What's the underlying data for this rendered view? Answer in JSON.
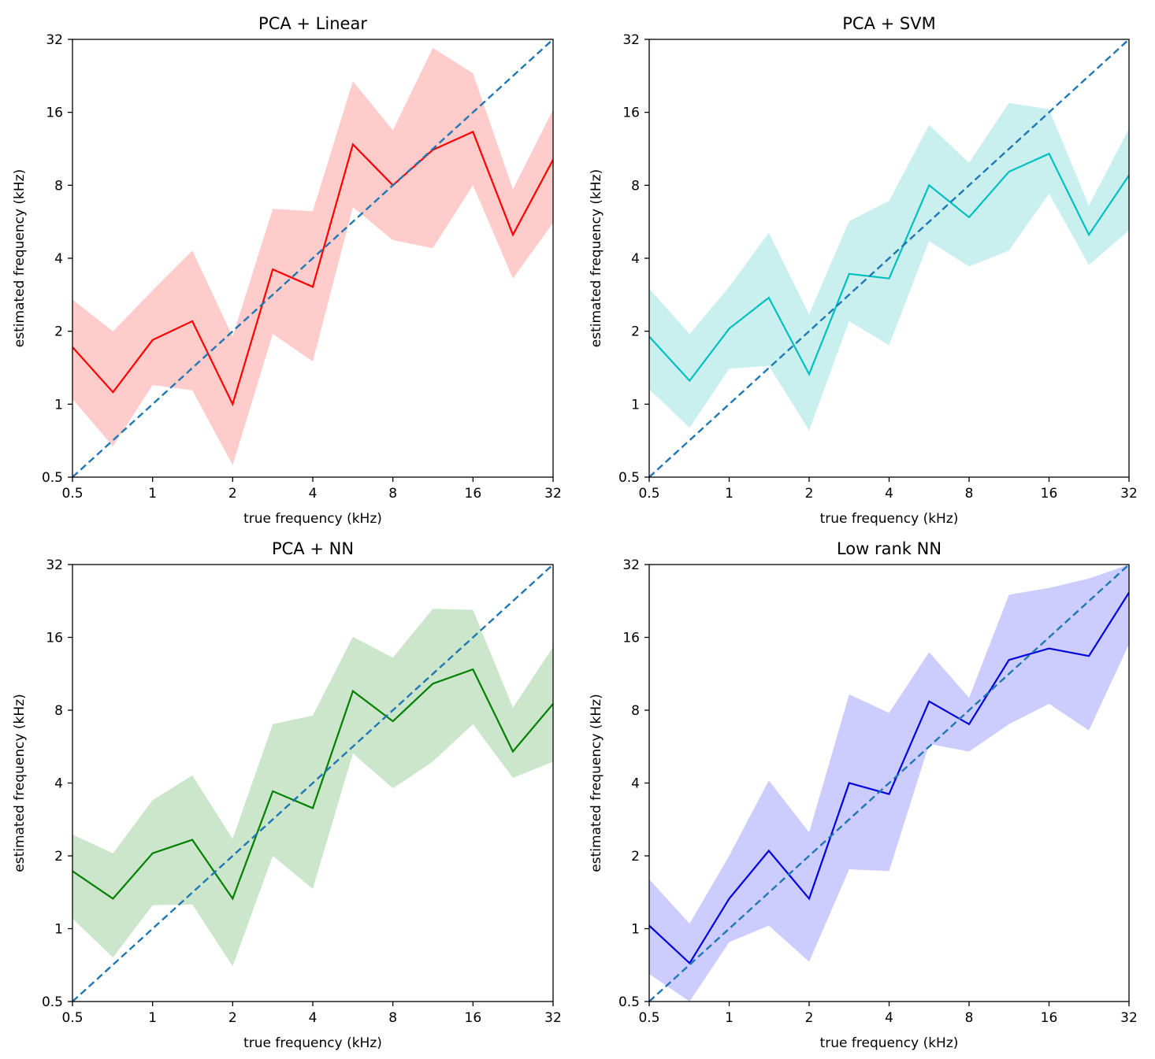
{
  "chart_data": [
    {
      "type": "line",
      "title": "PCA + Linear",
      "xlabel": "true frequency (kHz)",
      "ylabel": "estimated frequency (kHz)",
      "xscale": "log2",
      "yscale": "log2",
      "xlim": [
        0.5,
        32
      ],
      "ylim": [
        0.5,
        32
      ],
      "xticks": [
        "0.5",
        "1",
        "2",
        "4",
        "8",
        "16",
        "32"
      ],
      "yticks": [
        "0.5",
        "1",
        "2",
        "4",
        "8",
        "16",
        "32"
      ],
      "grid": false,
      "line_color": "#ff0000",
      "band_color": "#ffcccc",
      "reference_line": {
        "style": "dashed",
        "color": "#1f77b4",
        "from": [
          0.5,
          0.5
        ],
        "to": [
          32,
          32
        ]
      },
      "x": [
        0.5,
        0.71,
        1,
        1.41,
        2,
        2.83,
        4,
        5.66,
        8,
        11.3,
        16,
        22.6,
        32
      ],
      "mean": [
        1.72,
        1.12,
        1.84,
        2.2,
        1.0,
        3.6,
        3.05,
        11.8,
        8.0,
        11.2,
        13.3,
        5.0,
        10.2
      ],
      "lower": [
        1.05,
        0.67,
        1.2,
        1.14,
        0.56,
        1.95,
        1.5,
        6.5,
        4.75,
        4.4,
        8.0,
        3.3,
        5.6
      ],
      "upper": [
        2.7,
        2.0,
        2.95,
        4.3,
        1.9,
        6.4,
        6.25,
        21.5,
        13.5,
        29.5,
        23.2,
        7.7,
        16.4
      ]
    },
    {
      "type": "line",
      "title": "PCA + SVM",
      "xlabel": "true frequency (kHz)",
      "ylabel": "estimated frequency (kHz)",
      "xscale": "log2",
      "yscale": "log2",
      "xlim": [
        0.5,
        32
      ],
      "ylim": [
        0.5,
        32
      ],
      "xticks": [
        "0.5",
        "1",
        "2",
        "4",
        "8",
        "16",
        "32"
      ],
      "yticks": [
        "0.5",
        "1",
        "2",
        "4",
        "8",
        "16",
        "32"
      ],
      "grid": false,
      "line_color": "#00bfbf",
      "band_color": "#c9f0ef",
      "reference_line": {
        "style": "dashed",
        "color": "#1f77b4",
        "from": [
          0.5,
          0.5
        ],
        "to": [
          32,
          32
        ]
      },
      "x": [
        0.5,
        0.71,
        1,
        1.41,
        2,
        2.83,
        4,
        5.66,
        8,
        11.3,
        16,
        22.6,
        32
      ],
      "mean": [
        1.9,
        1.25,
        2.05,
        2.75,
        1.33,
        3.45,
        3.3,
        8.0,
        5.9,
        9.1,
        10.8,
        5.0,
        8.8
      ],
      "lower": [
        1.15,
        0.8,
        1.4,
        1.44,
        0.78,
        2.2,
        1.75,
        4.7,
        3.7,
        4.3,
        7.4,
        3.75,
        5.2
      ],
      "upper": [
        3.0,
        1.95,
        3.05,
        5.1,
        2.35,
        5.7,
        6.9,
        14.2,
        9.9,
        17.5,
        16.5,
        6.6,
        13.7
      ]
    },
    {
      "type": "line",
      "title": "PCA + NN",
      "xlabel": "true frequency (kHz)",
      "ylabel": "estimated frequency (kHz)",
      "xscale": "log2",
      "yscale": "log2",
      "xlim": [
        0.5,
        32
      ],
      "ylim": [
        0.5,
        32
      ],
      "xticks": [
        "0.5",
        "1",
        "2",
        "4",
        "8",
        "16",
        "32"
      ],
      "yticks": [
        "0.5",
        "1",
        "2",
        "4",
        "8",
        "16",
        "32"
      ],
      "grid": false,
      "line_color": "#008000",
      "band_color": "#cce6cc",
      "reference_line": {
        "style": "dashed",
        "color": "#1f77b4",
        "from": [
          0.5,
          0.5
        ],
        "to": [
          32,
          32
        ]
      },
      "x": [
        0.5,
        0.71,
        1,
        1.41,
        2,
        2.83,
        4,
        5.66,
        8,
        11.3,
        16,
        22.6,
        32
      ],
      "mean": [
        1.73,
        1.33,
        2.05,
        2.33,
        1.33,
        3.7,
        3.15,
        9.6,
        7.2,
        10.3,
        11.8,
        5.4,
        8.5
      ],
      "lower": [
        1.1,
        0.76,
        1.25,
        1.26,
        0.7,
        2.0,
        1.46,
        5.3,
        3.8,
        4.9,
        7.0,
        4.2,
        4.9
      ],
      "upper": [
        2.45,
        2.05,
        3.4,
        4.3,
        2.35,
        7.0,
        7.6,
        16.1,
        13.2,
        21.0,
        20.8,
        8.2,
        14.6
      ]
    },
    {
      "type": "line",
      "title": "Low rank NN",
      "xlabel": "true frequency (kHz)",
      "ylabel": "estimated frequency (kHz)",
      "xscale": "log2",
      "yscale": "log2",
      "xlim": [
        0.5,
        32
      ],
      "ylim": [
        0.5,
        32
      ],
      "xticks": [
        "0.5",
        "1",
        "2",
        "4",
        "8",
        "16",
        "32"
      ],
      "yticks": [
        "0.5",
        "1",
        "2",
        "4",
        "8",
        "16",
        "32"
      ],
      "grid": false,
      "line_color": "#0000dd",
      "band_color": "#ccccff",
      "reference_line": {
        "style": "dashed",
        "color": "#1f77b4",
        "from": [
          0.5,
          0.5
        ],
        "to": [
          32,
          32
        ]
      },
      "x": [
        0.5,
        0.71,
        1,
        1.41,
        2,
        2.83,
        4,
        5.66,
        8,
        11.3,
        16,
        22.6,
        32
      ],
      "mean": [
        1.03,
        0.72,
        1.33,
        2.1,
        1.33,
        4.0,
        3.6,
        8.7,
        7.0,
        12.9,
        14.4,
        13.4,
        24.5
      ],
      "lower": [
        0.65,
        0.5,
        0.88,
        1.03,
        0.73,
        1.76,
        1.73,
        5.8,
        5.4,
        7.0,
        8.5,
        6.6,
        15.0
      ],
      "upper": [
        1.6,
        1.05,
        2.0,
        4.1,
        2.5,
        9.3,
        7.8,
        13.9,
        9.0,
        24.0,
        25.6,
        28.0,
        32.0
      ]
    }
  ]
}
